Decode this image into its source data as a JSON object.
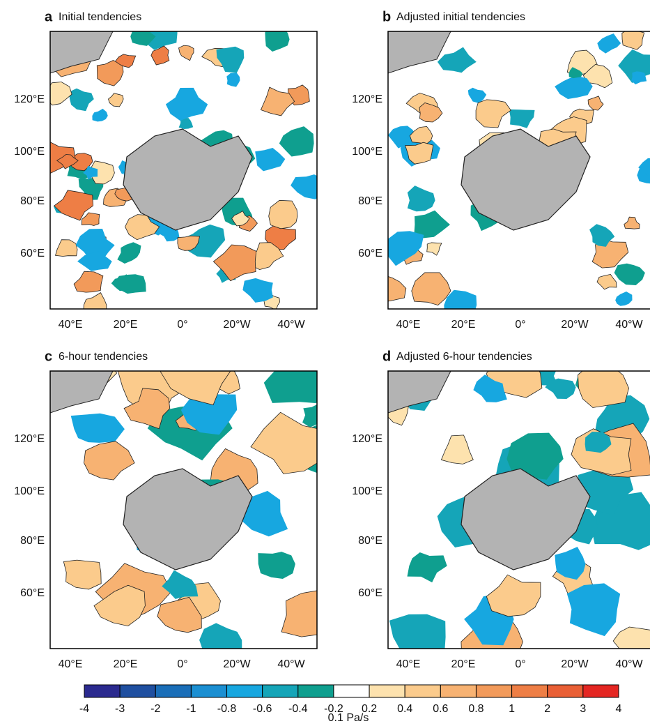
{
  "panels": [
    {
      "letter": "a",
      "title": "Initial tendencies",
      "yticks": [
        "120°E",
        "100°E",
        "80°E",
        "60°E"
      ],
      "xticks": [
        "40°E",
        "20°E",
        "0°",
        "20°W",
        "40°W"
      ]
    },
    {
      "letter": "b",
      "title": "Adjusted initial tendencies",
      "yticks": [
        "120°E",
        "100°E",
        "80°E",
        "60°E"
      ],
      "xticks": [
        "40°E",
        "20°E",
        "0°",
        "20°W",
        "40°W"
      ]
    },
    {
      "letter": "c",
      "title": "6-hour tendencies",
      "yticks": [
        "120°E",
        "100°E",
        "80°E",
        "60°E"
      ],
      "xticks": [
        "40°E",
        "20°E",
        "0°",
        "20°W",
        "40°W"
      ]
    },
    {
      "letter": "d",
      "title": "Adjusted 6-hour tendencies",
      "yticks": [
        "120°E",
        "100°E",
        "80°E",
        "60°E"
      ],
      "xticks": [
        "40°E",
        "20°E",
        "0°",
        "20°W",
        "40°W"
      ]
    }
  ],
  "colorbar": {
    "levels": [
      -4,
      -3,
      -2,
      -1,
      -0.8,
      -0.6,
      -0.4,
      -0.2,
      0.2,
      0.4,
      0.6,
      0.8,
      1,
      2,
      3,
      4
    ],
    "colors": [
      "#2b2a8f",
      "#1f4fa0",
      "#1a6eb8",
      "#1b8fd2",
      "#17a7e0",
      "#15a5b8",
      "#0f9f8f",
      "#ffffff",
      "#fde2ae",
      "#fbcb8c",
      "#f7b272",
      "#f29a5a",
      "#ee7e45",
      "#e95f35",
      "#e42622"
    ],
    "unit": "0.1 Pa/s"
  }
}
